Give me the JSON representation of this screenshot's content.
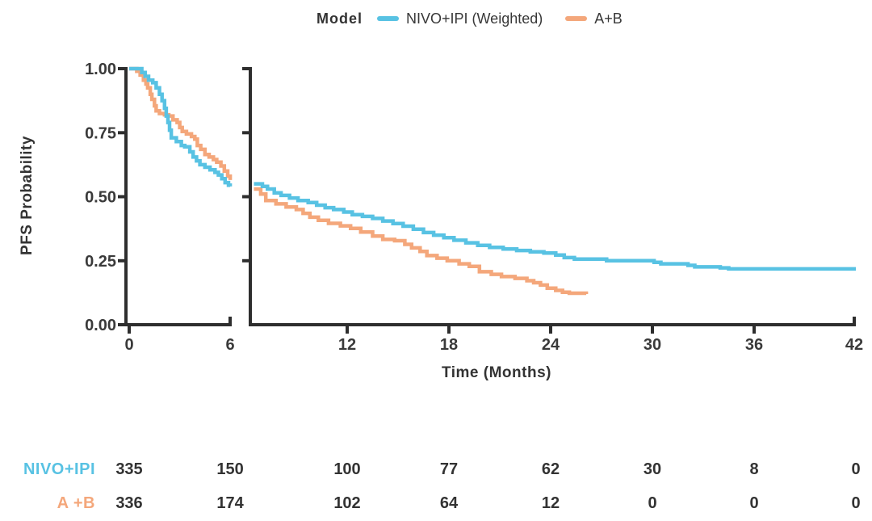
{
  "legend": {
    "title": "Model",
    "series": [
      {
        "label": "NIVO+IPI (Weighted)",
        "color": "#58C2E3"
      },
      {
        "label": "A+B",
        "color": "#F4A77B"
      }
    ]
  },
  "chart_data": {
    "type": "line",
    "subtype": "kaplan-meier-step",
    "title": "",
    "xlabel": "Time (Months)",
    "ylabel": "PFS Probability",
    "ylim": [
      0,
      1
    ],
    "y_ticks": [
      0,
      0.25,
      0.5,
      0.75,
      1
    ],
    "colors": {
      "axis": "#2e2e2e",
      "tick_text": "#3a3a3a"
    },
    "broken_x_axis": true,
    "panels": [
      {
        "xlim": [
          0,
          6
        ],
        "x_ticks": [
          0,
          6
        ],
        "series": [
          {
            "name": "A+B",
            "color": "#F4A77B",
            "points": [
              [
                0,
                1.0
              ],
              [
                0.45,
                0.99
              ],
              [
                0.65,
                0.975
              ],
              [
                0.85,
                0.955
              ],
              [
                1.0,
                0.94
              ],
              [
                1.1,
                0.925
              ],
              [
                1.25,
                0.9
              ],
              [
                1.35,
                0.88
              ],
              [
                1.5,
                0.855
              ],
              [
                1.6,
                0.835
              ],
              [
                1.8,
                0.825
              ],
              [
                2.1,
                0.82
              ],
              [
                2.35,
                0.815
              ],
              [
                2.6,
                0.8
              ],
              [
                2.85,
                0.79
              ],
              [
                3.0,
                0.77
              ],
              [
                3.15,
                0.755
              ],
              [
                3.4,
                0.745
              ],
              [
                3.7,
                0.735
              ],
              [
                3.9,
                0.725
              ],
              [
                4.05,
                0.7
              ],
              [
                4.25,
                0.685
              ],
              [
                4.5,
                0.665
              ],
              [
                4.75,
                0.655
              ],
              [
                5.0,
                0.645
              ],
              [
                5.2,
                0.635
              ],
              [
                5.45,
                0.62
              ],
              [
                5.65,
                0.6
              ],
              [
                5.85,
                0.58
              ],
              [
                6.0,
                0.565
              ]
            ]
          },
          {
            "name": "NIVO+IPI (Weighted)",
            "color": "#58C2E3",
            "points": [
              [
                0,
                1.0
              ],
              [
                0.55,
                1.0
              ],
              [
                0.75,
                0.985
              ],
              [
                0.95,
                0.97
              ],
              [
                1.15,
                0.955
              ],
              [
                1.4,
                0.945
              ],
              [
                1.6,
                0.925
              ],
              [
                1.8,
                0.9
              ],
              [
                1.95,
                0.875
              ],
              [
                2.1,
                0.845
              ],
              [
                2.2,
                0.815
              ],
              [
                2.3,
                0.79
              ],
              [
                2.4,
                0.76
              ],
              [
                2.5,
                0.73
              ],
              [
                2.8,
                0.715
              ],
              [
                3.1,
                0.7
              ],
              [
                3.3,
                0.695
              ],
              [
                3.6,
                0.675
              ],
              [
                3.8,
                0.655
              ],
              [
                4.0,
                0.64
              ],
              [
                4.2,
                0.625
              ],
              [
                4.5,
                0.615
              ],
              [
                4.8,
                0.605
              ],
              [
                5.1,
                0.595
              ],
              [
                5.3,
                0.585
              ],
              [
                5.5,
                0.57
              ],
              [
                5.7,
                0.555
              ],
              [
                5.9,
                0.545
              ],
              [
                6.0,
                0.54
              ]
            ]
          }
        ]
      },
      {
        "xlim": [
          6.3,
          42
        ],
        "x_ticks": [
          12,
          18,
          24,
          30,
          36,
          42
        ],
        "series": [
          {
            "name": "A+B",
            "color": "#F4A77B",
            "points": [
              [
                6.5,
                0.53
              ],
              [
                6.9,
                0.51
              ],
              [
                7.2,
                0.485
              ],
              [
                7.8,
                0.472
              ],
              [
                8.4,
                0.46
              ],
              [
                9.0,
                0.45
              ],
              [
                9.4,
                0.435
              ],
              [
                9.8,
                0.42
              ],
              [
                10.3,
                0.408
              ],
              [
                10.9,
                0.396
              ],
              [
                11.6,
                0.386
              ],
              [
                12.2,
                0.376
              ],
              [
                12.8,
                0.362
              ],
              [
                13.5,
                0.346
              ],
              [
                14.1,
                0.333
              ],
              [
                14.8,
                0.328
              ],
              [
                15.4,
                0.314
              ],
              [
                15.8,
                0.3
              ],
              [
                16.3,
                0.286
              ],
              [
                16.7,
                0.27
              ],
              [
                17.3,
                0.26
              ],
              [
                17.9,
                0.25
              ],
              [
                18.6,
                0.238
              ],
              [
                19.2,
                0.228
              ],
              [
                19.8,
                0.207
              ],
              [
                20.5,
                0.197
              ],
              [
                21.1,
                0.188
              ],
              [
                21.9,
                0.181
              ],
              [
                22.6,
                0.172
              ],
              [
                23.0,
                0.164
              ],
              [
                23.4,
                0.155
              ],
              [
                23.8,
                0.143
              ],
              [
                24.3,
                0.134
              ],
              [
                24.7,
                0.127
              ],
              [
                25.1,
                0.123
              ],
              [
                26.1,
                0.12
              ]
            ]
          },
          {
            "name": "NIVO+IPI (Weighted)",
            "color": "#58C2E3",
            "points": [
              [
                6.5,
                0.55
              ],
              [
                7.0,
                0.54
              ],
              [
                7.3,
                0.53
              ],
              [
                7.7,
                0.515
              ],
              [
                8.1,
                0.505
              ],
              [
                8.6,
                0.495
              ],
              [
                9.1,
                0.485
              ],
              [
                9.7,
                0.477
              ],
              [
                10.2,
                0.467
              ],
              [
                10.7,
                0.457
              ],
              [
                11.2,
                0.45
              ],
              [
                11.8,
                0.44
              ],
              [
                12.3,
                0.43
              ],
              [
                12.9,
                0.423
              ],
              [
                13.5,
                0.415
              ],
              [
                14.1,
                0.405
              ],
              [
                14.7,
                0.395
              ],
              [
                15.3,
                0.385
              ],
              [
                15.9,
                0.373
              ],
              [
                16.5,
                0.36
              ],
              [
                17.1,
                0.35
              ],
              [
                17.7,
                0.34
              ],
              [
                18.3,
                0.33
              ],
              [
                19.0,
                0.32
              ],
              [
                19.7,
                0.31
              ],
              [
                20.4,
                0.302
              ],
              [
                21.2,
                0.296
              ],
              [
                22.0,
                0.29
              ],
              [
                22.8,
                0.285
              ],
              [
                23.6,
                0.28
              ],
              [
                24.3,
                0.272
              ],
              [
                24.8,
                0.262
              ],
              [
                25.4,
                0.256
              ],
              [
                27.3,
                0.25
              ],
              [
                30.1,
                0.244
              ],
              [
                30.5,
                0.238
              ],
              [
                32.1,
                0.232
              ],
              [
                32.5,
                0.226
              ],
              [
                34.0,
                0.222
              ],
              [
                34.5,
                0.218
              ],
              [
                42.0,
                0.218
              ]
            ]
          }
        ]
      }
    ]
  },
  "risk_table": {
    "columns": [
      0,
      6,
      12,
      18,
      24,
      30,
      36,
      42
    ],
    "rows": [
      {
        "label": "NIVO+IPI",
        "color": "#58C2E3",
        "values": [
          335,
          150,
          100,
          77,
          62,
          30,
          8,
          0
        ]
      },
      {
        "label": "A +B",
        "color": "#F4A77B",
        "values": [
          336,
          174,
          102,
          64,
          12,
          0,
          0,
          0
        ]
      }
    ]
  }
}
